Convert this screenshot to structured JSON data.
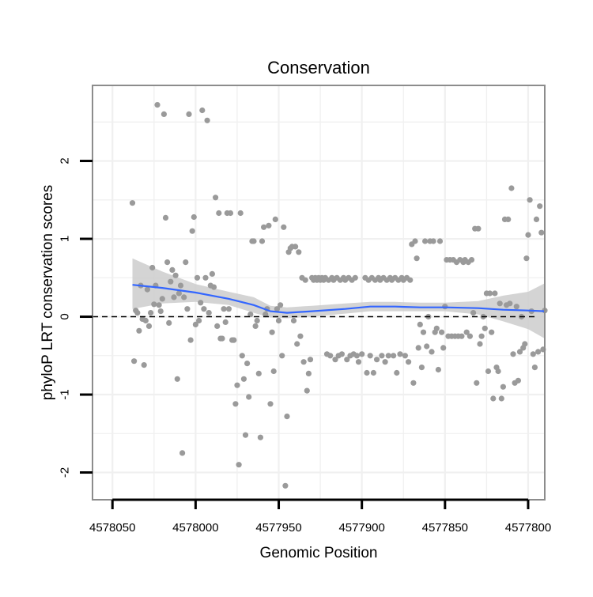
{
  "chart_data": {
    "type": "scatter",
    "title": "Conservation",
    "xlabel": "Genomic Position",
    "ylabel": "phyloP LRT conservation scores",
    "x_reversed": true,
    "xlim": [
      4578062,
      4577790
    ],
    "ylim": [
      -2.35,
      2.97
    ],
    "x_ticks": [
      4578050,
      4578000,
      4577950,
      4577900,
      4577850,
      4577800
    ],
    "x_tick_labels": [
      "4578050",
      "4578000",
      "4577950",
      "4577900",
      "4577850",
      "4577800"
    ],
    "y_ticks": [
      -2,
      -1,
      0,
      1,
      2
    ],
    "y_tick_labels": [
      "-2",
      "-1",
      "0",
      "1",
      "2"
    ],
    "grid": true,
    "colors": {
      "points": "#9a9a9a",
      "smooth_line": "#3366ff",
      "confidence_band": "#cccccc",
      "panel_border": "#8c8c8c",
      "grid": "#f0f0f0",
      "reference_line": "#000000"
    },
    "points": [
      [
        4578038,
        1.46
      ],
      [
        4578037,
        -0.57
      ],
      [
        4578036,
        0.08
      ],
      [
        4578035,
        0.05
      ],
      [
        4578034,
        -0.18
      ],
      [
        4578033,
        0.4
      ],
      [
        4578032,
        -0.03
      ],
      [
        4578031,
        -0.62
      ],
      [
        4578030,
        -0.05
      ],
      [
        4578029,
        0.35
      ],
      [
        4578028,
        -0.12
      ],
      [
        4578027,
        0.05
      ],
      [
        4578026,
        0.63
      ],
      [
        4578025,
        0.16
      ],
      [
        4578024,
        0.4
      ],
      [
        4578023,
        2.72
      ],
      [
        4578022,
        0.15
      ],
      [
        4578021,
        0.07
      ],
      [
        4578020,
        0.23
      ],
      [
        4578019,
        2.6
      ],
      [
        4578018,
        1.27
      ],
      [
        4578017,
        0.7
      ],
      [
        4578016,
        -0.08
      ],
      [
        4578015,
        0.45
      ],
      [
        4578014,
        0.6
      ],
      [
        4578013,
        0.25
      ],
      [
        4578012,
        0.53
      ],
      [
        4578011,
        -0.8
      ],
      [
        4578010,
        0.3
      ],
      [
        4578009,
        0.4
      ],
      [
        4578008,
        -1.75
      ],
      [
        4578007,
        0.25
      ],
      [
        4578006,
        0.7
      ],
      [
        4578005,
        0.1
      ],
      [
        4578004,
        2.6
      ],
      [
        4578003,
        -0.3
      ],
      [
        4578002,
        1.1
      ],
      [
        4578001,
        1.28
      ],
      [
        4578000,
        -0.1
      ],
      [
        4577999,
        0.5
      ],
      [
        4577998,
        -0.05
      ],
      [
        4577997,
        0.18
      ],
      [
        4577996,
        2.65
      ],
      [
        4577995,
        0.1
      ],
      [
        4577994,
        0.5
      ],
      [
        4577993,
        2.52
      ],
      [
        4577992,
        0.05
      ],
      [
        4577991,
        0.4
      ],
      [
        4577990,
        0.55
      ],
      [
        4577989,
        0.38
      ],
      [
        4577988,
        1.53
      ],
      [
        4577987,
        -0.12
      ],
      [
        4577986,
        1.33
      ],
      [
        4577985,
        -0.28
      ],
      [
        4577984,
        -0.28
      ],
      [
        4577983,
        0.1
      ],
      [
        4577982,
        -0.07
      ],
      [
        4577981,
        1.33
      ],
      [
        4577980,
        0.1
      ],
      [
        4577979,
        1.33
      ],
      [
        4577978,
        -0.3
      ],
      [
        4577977,
        -0.3
      ],
      [
        4577976,
        -1.12
      ],
      [
        4577975,
        -0.88
      ],
      [
        4577974,
        -1.9
      ],
      [
        4577973,
        1.33
      ],
      [
        4577972,
        -0.5
      ],
      [
        4577971,
        -0.8
      ],
      [
        4577970,
        -1.52
      ],
      [
        4577969,
        -0.6
      ],
      [
        4577968,
        -1.03
      ],
      [
        4577967,
        0.03
      ],
      [
        4577966,
        0.97
      ],
      [
        4577965,
        0.97
      ],
      [
        4577964,
        -0.12
      ],
      [
        4577963,
        -0.05
      ],
      [
        4577962,
        -0.73
      ],
      [
        4577961,
        -1.55
      ],
      [
        4577960,
        0.97
      ],
      [
        4577959,
        1.15
      ],
      [
        4577958,
        0.03
      ],
      [
        4577957,
        0.1
      ],
      [
        4577956,
        1.17
      ],
      [
        4577955,
        -1.12
      ],
      [
        4577954,
        -0.2
      ],
      [
        4577953,
        -0.7
      ],
      [
        4577952,
        1.25
      ],
      [
        4577951,
        0.1
      ],
      [
        4577950,
        -0.05
      ],
      [
        4577949,
        0.15
      ],
      [
        4577948,
        -0.5
      ],
      [
        4577947,
        1.15
      ],
      [
        4577946,
        -2.17
      ],
      [
        4577945,
        -1.28
      ],
      [
        4577944,
        0.83
      ],
      [
        4577943,
        0.88
      ],
      [
        4577942,
        0.9
      ],
      [
        4577941,
        -0.05
      ],
      [
        4577940,
        0.9
      ],
      [
        4577939,
        -0.35
      ],
      [
        4577938,
        0.83
      ],
      [
        4577937,
        -0.25
      ],
      [
        4577936,
        0.5
      ],
      [
        4577935,
        -0.58
      ],
      [
        4577934,
        0.47
      ],
      [
        4577933,
        -0.95
      ],
      [
        4577932,
        -0.73
      ],
      [
        4577931,
        -0.55
      ],
      [
        4577930,
        0.5
      ],
      [
        4577929,
        0.47
      ],
      [
        4577928,
        0.5
      ],
      [
        4577927,
        0.47
      ],
      [
        4577926,
        0.5
      ],
      [
        4577925,
        0.47
      ],
      [
        4577924,
        0.5
      ],
      [
        4577923,
        0.47
      ],
      [
        4577922,
        0.5
      ],
      [
        4577921,
        -0.48
      ],
      [
        4577920,
        0.47
      ],
      [
        4577919,
        -0.5
      ],
      [
        4577918,
        0.5
      ],
      [
        4577917,
        0.47
      ],
      [
        4577916,
        -0.55
      ],
      [
        4577915,
        0.5
      ],
      [
        4577914,
        -0.5
      ],
      [
        4577913,
        0.47
      ],
      [
        4577912,
        -0.48
      ],
      [
        4577911,
        0.5
      ],
      [
        4577910,
        0.47
      ],
      [
        4577909,
        -0.55
      ],
      [
        4577908,
        0.5
      ],
      [
        4577907,
        -0.5
      ],
      [
        4577906,
        0.47
      ],
      [
        4577905,
        -0.48
      ],
      [
        4577904,
        0.5
      ],
      [
        4577903,
        -0.5
      ],
      [
        4577902,
        -0.58
      ],
      [
        4577900,
        -0.48
      ],
      [
        4577898,
        0.5
      ],
      [
        4577897,
        -0.72
      ],
      [
        4577896,
        0.47
      ],
      [
        4577895,
        -0.5
      ],
      [
        4577894,
        0.5
      ],
      [
        4577893,
        -0.72
      ],
      [
        4577892,
        0.47
      ],
      [
        4577891,
        -0.55
      ],
      [
        4577890,
        0.5
      ],
      [
        4577889,
        0.47
      ],
      [
        4577888,
        -0.5
      ],
      [
        4577887,
        0.5
      ],
      [
        4577886,
        -0.58
      ],
      [
        4577885,
        0.47
      ],
      [
        4577884,
        -0.5
      ],
      [
        4577883,
        0.5
      ],
      [
        4577882,
        0.47
      ],
      [
        4577881,
        -0.5
      ],
      [
        4577880,
        0.5
      ],
      [
        4577879,
        -0.72
      ],
      [
        4577878,
        0.47
      ],
      [
        4577877,
        -0.48
      ],
      [
        4577876,
        0.5
      ],
      [
        4577875,
        0.47
      ],
      [
        4577874,
        -0.5
      ],
      [
        4577873,
        0.5
      ],
      [
        4577872,
        -0.58
      ],
      [
        4577871,
        0.47
      ],
      [
        4577870,
        0.93
      ],
      [
        4577869,
        -0.85
      ],
      [
        4577868,
        0.97
      ],
      [
        4577867,
        0.75
      ],
      [
        4577866,
        -0.4
      ],
      [
        4577865,
        -0.1
      ],
      [
        4577864,
        -0.65
      ],
      [
        4577863,
        -0.2
      ],
      [
        4577862,
        0.97
      ],
      [
        4577861,
        -0.38
      ],
      [
        4577860,
        0.0
      ],
      [
        4577859,
        0.97
      ],
      [
        4577858,
        -0.45
      ],
      [
        4577857,
        0.97
      ],
      [
        4577856,
        -0.2
      ],
      [
        4577855,
        -0.15
      ],
      [
        4577854,
        -0.68
      ],
      [
        4577853,
        0.97
      ],
      [
        4577852,
        -0.2
      ],
      [
        4577851,
        -0.4
      ],
      [
        4577850,
        0.13
      ],
      [
        4577849,
        0.73
      ],
      [
        4577848,
        -0.25
      ],
      [
        4577847,
        0.73
      ],
      [
        4577846,
        -0.25
      ],
      [
        4577845,
        0.73
      ],
      [
        4577844,
        -0.25
      ],
      [
        4577843,
        0.7
      ],
      [
        4577842,
        -0.25
      ],
      [
        4577841,
        0.73
      ],
      [
        4577840,
        -0.25
      ],
      [
        4577839,
        0.7
      ],
      [
        4577838,
        0.73
      ],
      [
        4577837,
        -0.2
      ],
      [
        4577836,
        0.7
      ],
      [
        4577835,
        -0.25
      ],
      [
        4577834,
        0.73
      ],
      [
        4577833,
        0.05
      ],
      [
        4577832,
        1.13
      ],
      [
        4577831,
        -0.85
      ],
      [
        4577830,
        1.13
      ],
      [
        4577829,
        -0.35
      ],
      [
        4577828,
        -0.25
      ],
      [
        4577827,
        0.0
      ],
      [
        4577826,
        -0.15
      ],
      [
        4577825,
        0.3
      ],
      [
        4577824,
        -0.7
      ],
      [
        4577823,
        0.3
      ],
      [
        4577822,
        -0.2
      ],
      [
        4577821,
        -1.05
      ],
      [
        4577820,
        0.3
      ],
      [
        4577819,
        -0.65
      ],
      [
        4577818,
        -0.7
      ],
      [
        4577817,
        0.17
      ],
      [
        4577816,
        -1.05
      ],
      [
        4577815,
        -0.9
      ],
      [
        4577814,
        1.25
      ],
      [
        4577813,
        0.15
      ],
      [
        4577812,
        1.25
      ],
      [
        4577811,
        0.17
      ],
      [
        4577810,
        1.65
      ],
      [
        4577809,
        -0.48
      ],
      [
        4577808,
        -0.85
      ],
      [
        4577807,
        0.13
      ],
      [
        4577806,
        -0.82
      ],
      [
        4577805,
        -0.45
      ],
      [
        4577804,
        0.0
      ],
      [
        4577803,
        -0.4
      ],
      [
        4577802,
        -0.35
      ],
      [
        4577801,
        0.75
      ],
      [
        4577800,
        1.05
      ],
      [
        4577799,
        1.5
      ],
      [
        4577798,
        0.07
      ],
      [
        4577797,
        -0.48
      ],
      [
        4577796,
        -0.65
      ],
      [
        4577795,
        1.25
      ],
      [
        4577794,
        -0.45
      ],
      [
        4577793,
        1.42
      ],
      [
        4577792,
        1.08
      ],
      [
        4577791,
        -0.42
      ],
      [
        4577790,
        0.08
      ]
    ],
    "smooth": {
      "x": [
        4578038,
        4578020,
        4578000,
        4577980,
        4577965,
        4577955,
        4577945,
        4577930,
        4577910,
        4577895,
        4577880,
        4577865,
        4577850,
        4577830,
        4577815,
        4577800,
        4577790
      ],
      "y": [
        0.41,
        0.37,
        0.31,
        0.23,
        0.15,
        0.07,
        0.05,
        0.07,
        0.1,
        0.13,
        0.13,
        0.12,
        0.12,
        0.11,
        0.09,
        0.08,
        0.07
      ],
      "lower": [
        0.1,
        0.17,
        0.19,
        0.15,
        0.05,
        -0.01,
        -0.02,
        0.0,
        0.04,
        0.07,
        0.07,
        0.07,
        0.07,
        0.03,
        -0.06,
        -0.16,
        -0.28
      ],
      "upper": [
        0.75,
        0.58,
        0.42,
        0.32,
        0.25,
        0.14,
        0.12,
        0.14,
        0.17,
        0.19,
        0.19,
        0.18,
        0.18,
        0.2,
        0.27,
        0.32,
        0.43
      ]
    }
  }
}
